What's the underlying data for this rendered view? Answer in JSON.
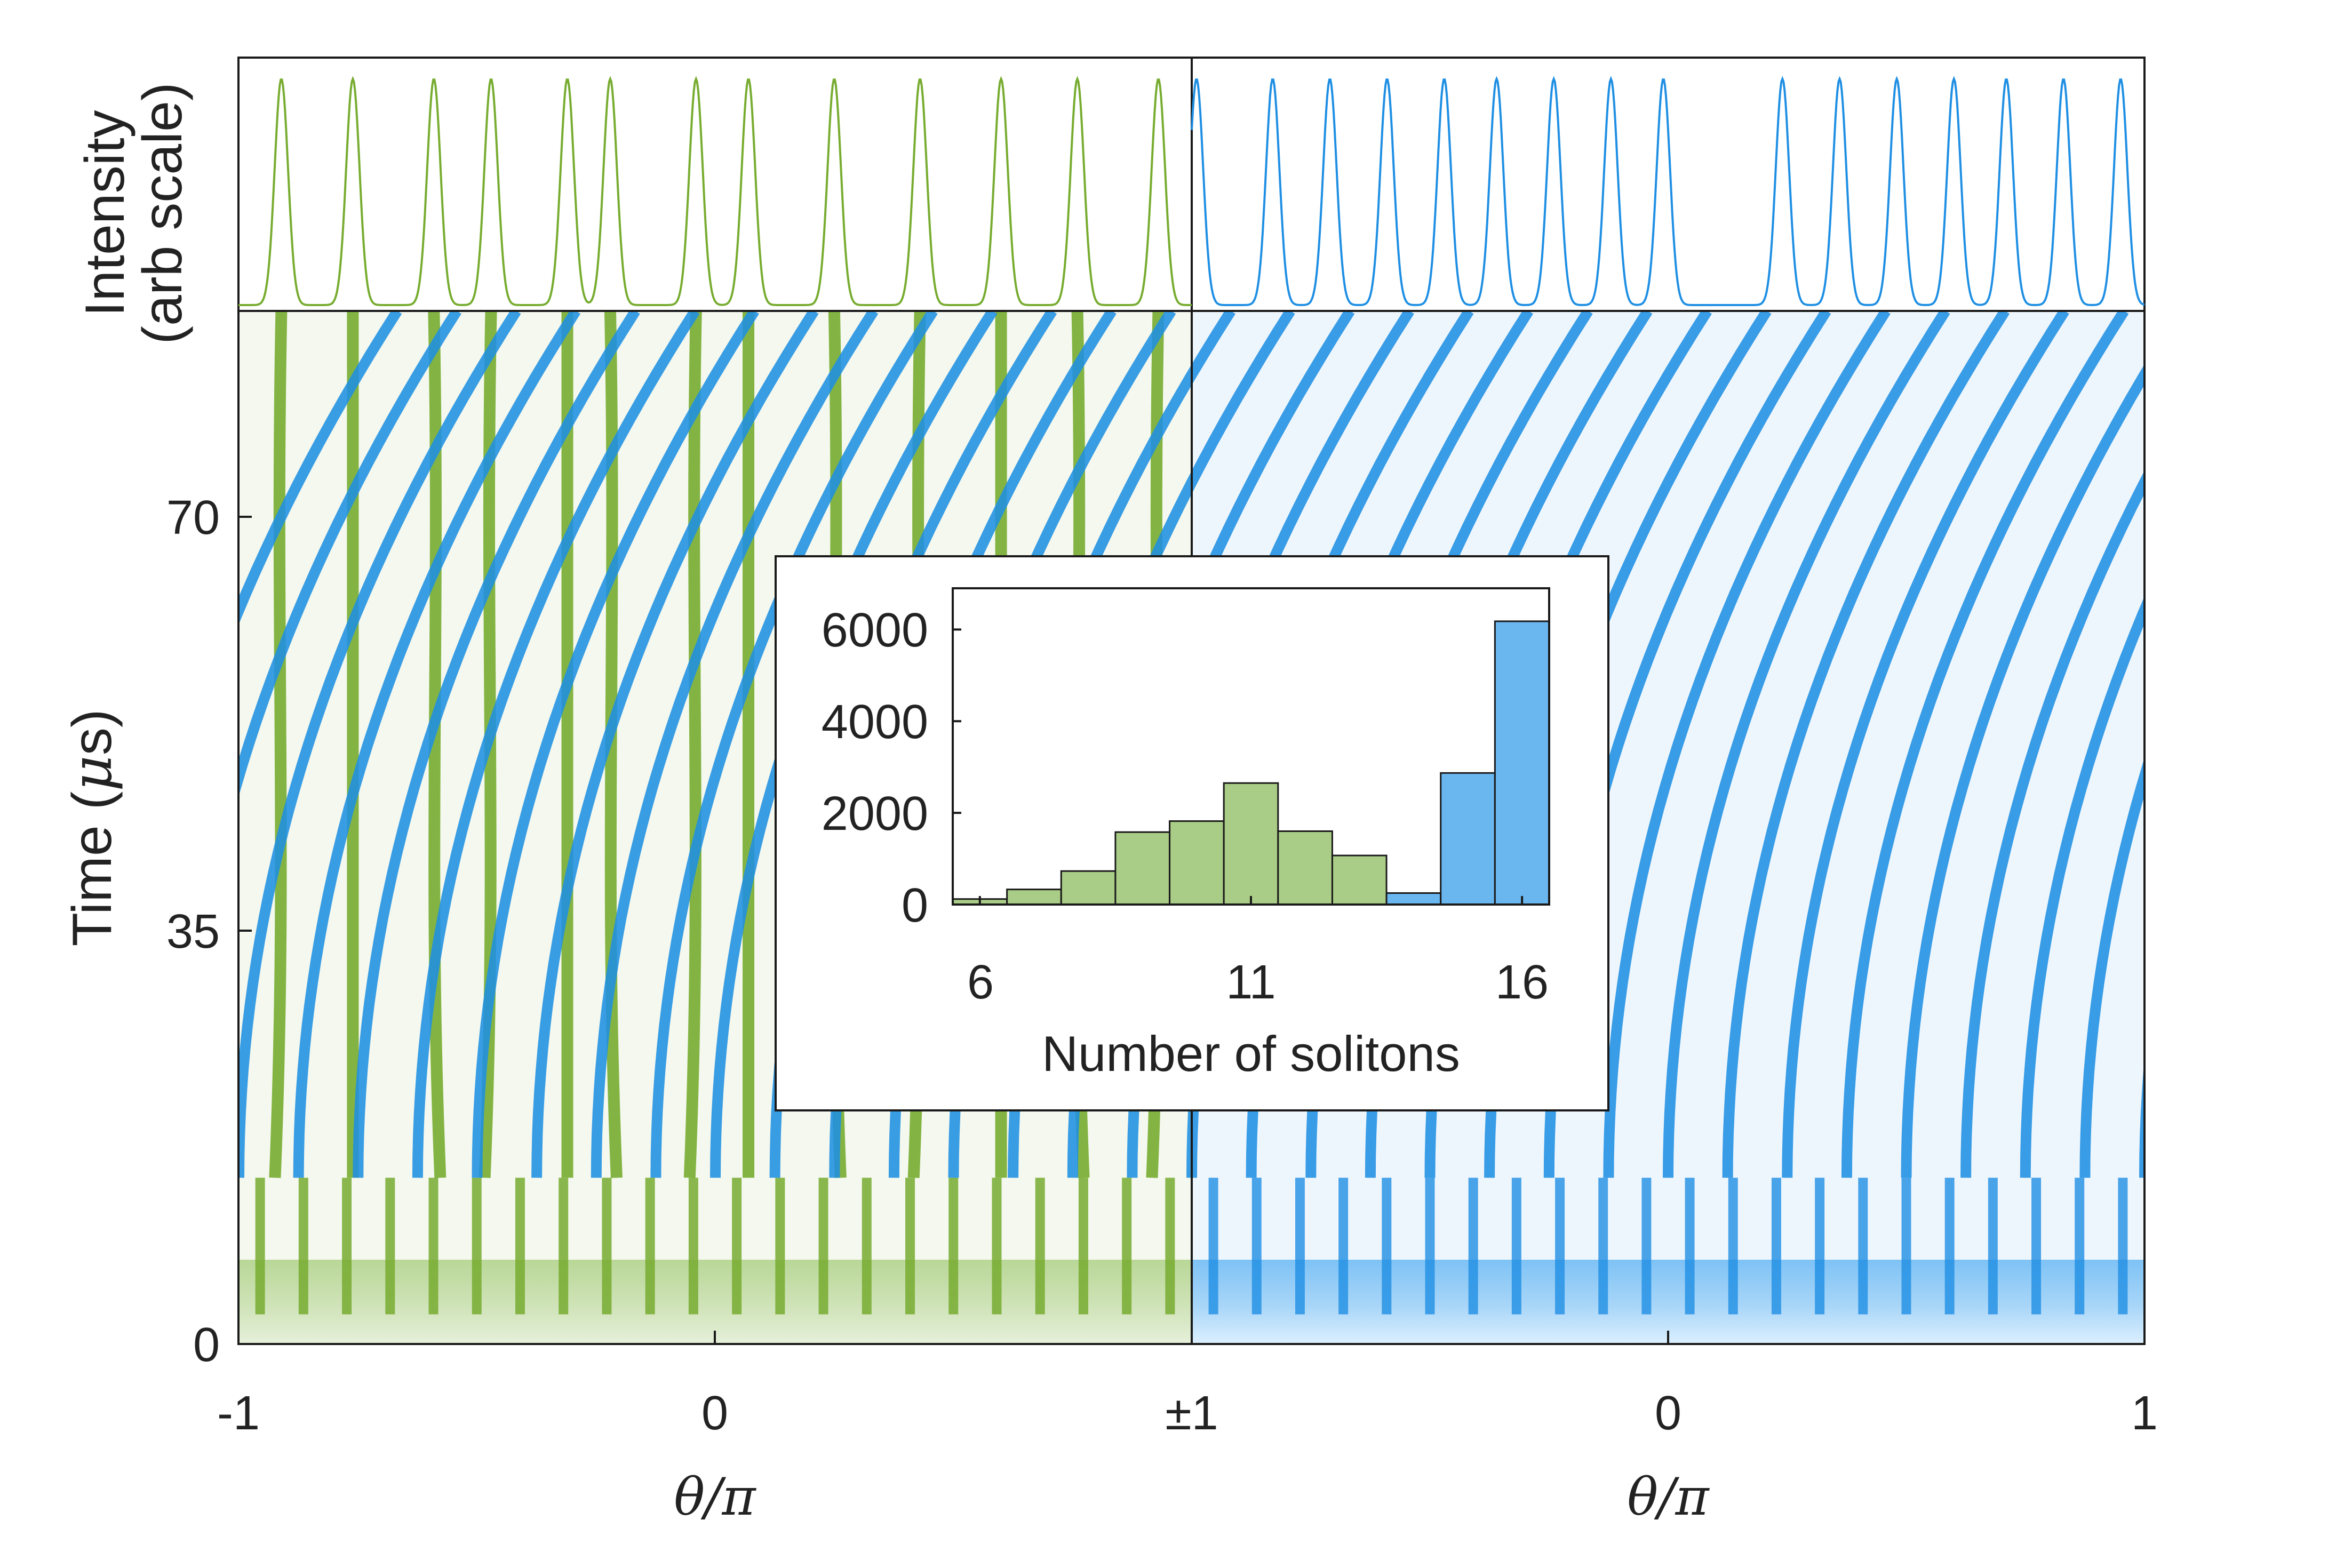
{
  "chart_data": [
    {
      "type": "line",
      "panel": "intensity-profiles",
      "ylabel_line1": "Intensity",
      "ylabel_line2": "(arb scale)",
      "series": [
        {
          "name": "green",
          "color": "#77ac30",
          "peaks": [
            -0.91,
            -0.76,
            -0.59,
            -0.47,
            -0.31,
            -0.22,
            -0.04,
            0.07,
            0.25,
            0.43,
            0.6,
            0.76,
            0.93
          ]
        },
        {
          "name": "blue",
          "color": "#1f8fe3",
          "peaks": [
            -0.99,
            -0.83,
            -0.71,
            -0.59,
            -0.47,
            -0.36,
            -0.24,
            -0.12,
            -0.01,
            0.24,
            0.36,
            0.48,
            0.6,
            0.71,
            0.83,
            0.95
          ]
        }
      ]
    },
    {
      "type": "heatmap",
      "panel": "soliton-evolution",
      "ylabel": "Time (",
      "ylabel_mu": "μ",
      "ylabel_unit": "s)",
      "xlabel": "θ/π",
      "x_ticks": [
        "-1",
        "0",
        "±1",
        "0",
        "1"
      ],
      "y_ticks": [
        "0",
        "35",
        "70"
      ],
      "yticks_values": [
        0,
        35,
        70
      ],
      "ylim": [
        0,
        87
      ],
      "left_panel": {
        "color": "#77ac30",
        "xlim": [
          -1,
          1
        ],
        "initial_lines": 22,
        "final_lines": 13
      },
      "right_panel": {
        "color": "#1f8fe3",
        "xlim": [
          -1,
          1
        ],
        "initial_lines": 22,
        "final_lines": 16
      }
    },
    {
      "type": "bar",
      "panel": "inset-histogram",
      "title": "",
      "xlabel": "Number of solitons",
      "ylabel": "",
      "x_ticks": [
        "6",
        "11",
        "16"
      ],
      "x_tick_values": [
        6,
        11,
        16
      ],
      "y_ticks": [
        "0",
        "2000",
        "4000",
        "6000"
      ],
      "y_tick_values": [
        0,
        2000,
        4000,
        6000
      ],
      "xlim": [
        5.5,
        16.5
      ],
      "ylim": [
        0,
        6900
      ],
      "categories": [
        5,
        6,
        7,
        8,
        9,
        10,
        11,
        12,
        13,
        14,
        15,
        16
      ],
      "values": [
        100,
        120,
        330,
        730,
        1580,
        1820,
        2650,
        1600,
        1070,
        250,
        2870,
        6180
      ],
      "colors": [
        "#a9cc86",
        "#a9cc86",
        "#a9cc86",
        "#a9cc86",
        "#a9cc86",
        "#a9cc86",
        "#a9cc86",
        "#a9cc86",
        "#a9cc86",
        "#6ab6ef",
        "#6ab6ef",
        "#6ab6ef"
      ]
    }
  ]
}
